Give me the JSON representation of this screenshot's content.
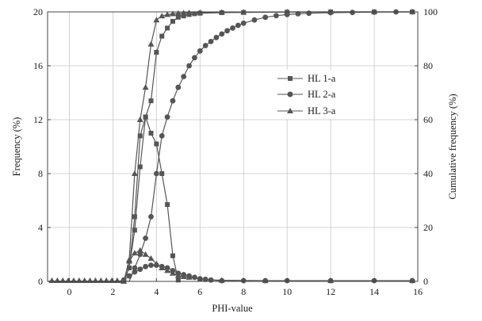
{
  "chart_data": {
    "type": "line",
    "xlabel": "PHI-value",
    "ylabel": "Frequency (%)",
    "y2label": "Cumulative frequency (%)",
    "xlim": [
      -1,
      16
    ],
    "ylim": [
      0,
      20
    ],
    "y2lim": [
      0,
      100
    ],
    "xticks": [
      0,
      2,
      4,
      6,
      8,
      10,
      12,
      14,
      16
    ],
    "yticks": [
      0,
      4,
      8,
      12,
      16,
      20
    ],
    "y2ticks": [
      0,
      20,
      40,
      60,
      80,
      100
    ],
    "grid": true,
    "legend_position": "center-right",
    "line_color": "#555555",
    "series": [
      {
        "name": "HL 1-a",
        "marker": "square",
        "frequency": {
          "x": [
            2.75,
            3.0,
            3.25,
            3.5,
            3.75,
            4.0,
            4.25,
            4.5,
            4.75,
            5.0
          ],
          "y": [
            1.0,
            3.8,
            8.5,
            12.2,
            11.0,
            10.2,
            8.0,
            5.7,
            1.9,
            0.1
          ]
        },
        "cumulative": {
          "x": [
            2.5,
            2.75,
            3.0,
            3.25,
            3.5,
            3.75,
            4.0,
            4.25,
            4.5,
            4.75,
            5.0,
            5.25,
            5.5,
            5.75,
            6.0,
            7.0,
            8.0,
            10.0,
            12.0,
            14.0,
            15.75
          ],
          "y": [
            0,
            5,
            24,
            54,
            61,
            67,
            85,
            91,
            94,
            96.5,
            98,
            98.5,
            99,
            99.3,
            99.5,
            99.7,
            99.8,
            99.9,
            100,
            100,
            100
          ]
        }
      },
      {
        "name": "HL 2-a",
        "marker": "circle",
        "frequency": {
          "x": [
            2.5,
            2.75,
            3.0,
            3.25,
            3.5,
            3.75,
            4.0,
            4.25,
            4.5,
            4.75,
            5.0,
            5.25,
            5.5,
            5.75,
            6.0,
            6.25,
            6.5,
            7.0,
            8.0,
            9.0,
            10.0,
            12.0,
            14.0,
            15.75
          ],
          "y": [
            0.1,
            0.4,
            0.7,
            0.9,
            1.1,
            1.2,
            1.2,
            1.1,
            1.0,
            0.8,
            0.6,
            0.5,
            0.4,
            0.3,
            0.2,
            0.15,
            0.1,
            0.05,
            0.05,
            0.05,
            0.05,
            0.05,
            0.05,
            0.05
          ]
        },
        "cumulative": {
          "x": [
            3.0,
            3.25,
            3.5,
            3.75,
            4.0,
            4.25,
            4.5,
            4.75,
            5.0,
            5.25,
            5.5,
            5.75,
            6.0,
            6.25,
            6.5,
            6.75,
            7.0,
            7.25,
            7.5,
            7.75,
            8.0,
            8.5,
            9.0,
            9.5,
            10.0,
            10.5,
            11.0,
            12.0,
            13.0,
            14.0,
            15.0,
            15.75
          ],
          "y": [
            5,
            10,
            16,
            24,
            40,
            54,
            61,
            67,
            72,
            76,
            80,
            83,
            85.5,
            87.5,
            89,
            90.5,
            91.8,
            93,
            94,
            95,
            95.8,
            97,
            98,
            98.6,
            99,
            99.3,
            99.5,
            99.7,
            99.8,
            99.9,
            100,
            100
          ]
        }
      },
      {
        "name": "HL 3-a",
        "marker": "triangle",
        "frequency": {
          "x": [
            2.75,
            3.0,
            3.25,
            3.5,
            3.75,
            4.0,
            4.25,
            4.5,
            4.75,
            5.0,
            5.25,
            5.5,
            6.0,
            7.0,
            9.0,
            12.0,
            15.75
          ],
          "y": [
            1.5,
            2.1,
            2.3,
            2.0,
            1.7,
            1.3,
            1.0,
            0.8,
            0.6,
            0.45,
            0.35,
            0.3,
            0.15,
            0.08,
            0.05,
            0.05,
            0.05
          ]
        },
        "cumulative": {
          "x": [
            2.5,
            2.75,
            3.0,
            3.25,
            3.5,
            3.75,
            4.0,
            4.25,
            4.5,
            4.75,
            5.0,
            5.25,
            5.5,
            6.0,
            7.0,
            8.0,
            10.0,
            12.0,
            14.0,
            15.75
          ],
          "y": [
            0,
            8,
            40,
            60,
            72,
            88,
            97,
            98.5,
            99,
            99.3,
            99.5,
            99.6,
            99.7,
            99.8,
            99.9,
            99.9,
            100,
            100,
            100,
            100
          ]
        }
      }
    ]
  }
}
